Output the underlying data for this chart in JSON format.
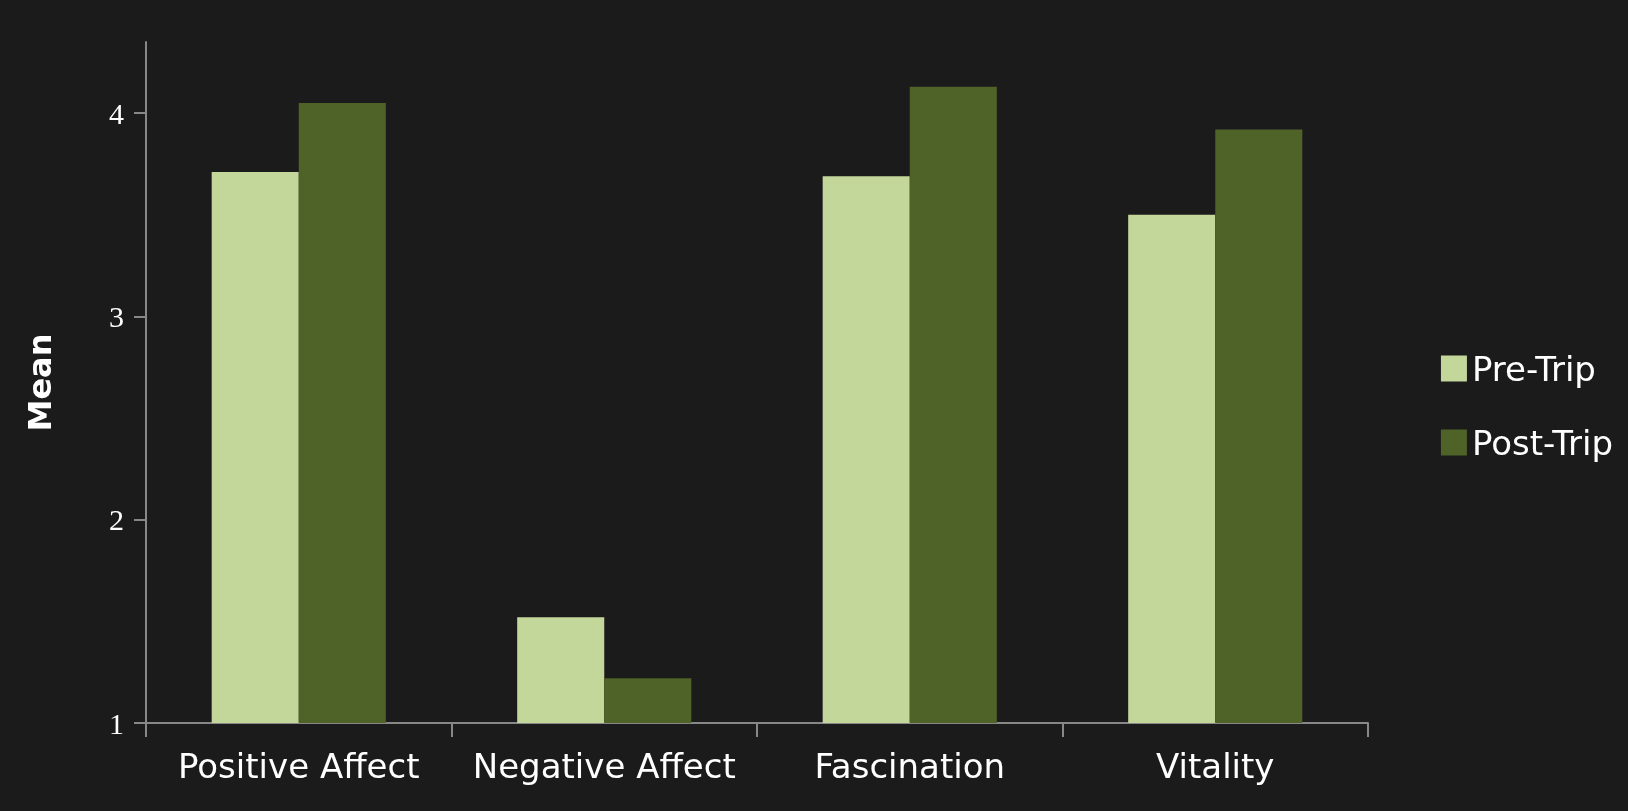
{
  "chart_data": {
    "type": "bar",
    "ylabel": "Mean",
    "categories": [
      "Positive Affect",
      "Negative Affect",
      "Fascination",
      "Vitality"
    ],
    "series": [
      {
        "name": "Pre-Trip",
        "color": "#c4d79b",
        "values": [
          3.71,
          1.52,
          3.69,
          3.5
        ]
      },
      {
        "name": "Post-Trip",
        "color": "#4f6228",
        "values": [
          4.05,
          1.22,
          4.13,
          3.92
        ]
      }
    ],
    "ylim": [
      1,
      4.35
    ],
    "yticks": [
      1,
      2,
      3,
      4
    ],
    "grid": false,
    "legend": "right"
  }
}
